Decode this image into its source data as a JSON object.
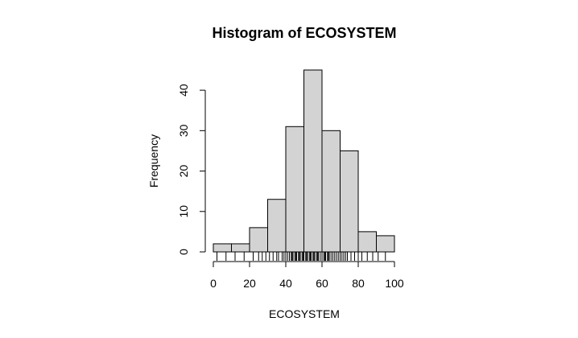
{
  "chart_data": {
    "type": "bar",
    "title": "Histogram of ECOSYSTEM",
    "xlabel": "ECOSYSTEM",
    "ylabel": "Frequency",
    "bins": [
      {
        "start": 0,
        "end": 10,
        "count": 2
      },
      {
        "start": 10,
        "end": 20,
        "count": 2
      },
      {
        "start": 20,
        "end": 30,
        "count": 6
      },
      {
        "start": 30,
        "end": 40,
        "count": 13
      },
      {
        "start": 40,
        "end": 50,
        "count": 31
      },
      {
        "start": 50,
        "end": 60,
        "count": 45
      },
      {
        "start": 60,
        "end": 70,
        "count": 30
      },
      {
        "start": 70,
        "end": 80,
        "count": 25
      },
      {
        "start": 80,
        "end": 90,
        "count": 5
      },
      {
        "start": 90,
        "end": 100,
        "count": 4
      }
    ],
    "xlim": [
      0,
      100
    ],
    "ylim": [
      0,
      45
    ],
    "x_ticks": [
      0,
      20,
      40,
      60,
      80,
      100
    ],
    "y_ticks": [
      0,
      10,
      20,
      30,
      40
    ],
    "rug": [
      2,
      7,
      12,
      17,
      22,
      25,
      27,
      29,
      31,
      33,
      35,
      36,
      38,
      39,
      40,
      41,
      42,
      43,
      43.5,
      44,
      45,
      45.5,
      46,
      47,
      47.5,
      48,
      49,
      49.5,
      50,
      51,
      51.5,
      52,
      53,
      53.5,
      54,
      55,
      55.5,
      56,
      57,
      57.5,
      58,
      59,
      60,
      61,
      61.5,
      62,
      63,
      63.5,
      64,
      65,
      66,
      67,
      68,
      69,
      70,
      71,
      72,
      73,
      74,
      76,
      78,
      80,
      82,
      85,
      88,
      91,
      95
    ],
    "grid": false,
    "legend": "none"
  }
}
